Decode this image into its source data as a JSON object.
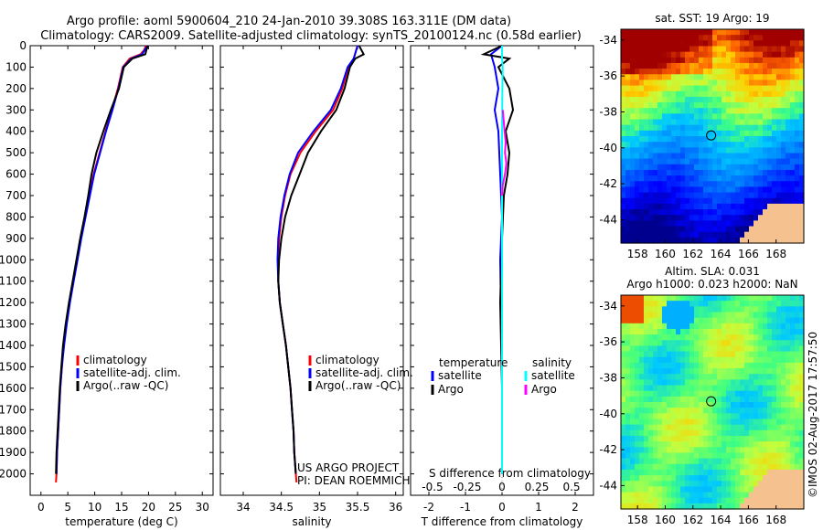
{
  "header": {
    "title_line1": "Argo profile: aoml 5900604_210 24-Jan-2010 39.308S 163.311E (DM data)",
    "title_line2": "Climatology: CARS2009. Satellite-adjusted climatology: synTS_20100124.nc (0.58d earlier)"
  },
  "colors": {
    "climatology": "#ff0000",
    "satellite": "#0000ff",
    "argo": "#000000",
    "satellite_salinity": "#00ffff",
    "argo_salinity": "#ff00ff",
    "land": "#f5c28f"
  },
  "chart_data": [
    {
      "type": "line",
      "id": "temperature",
      "xlabel": "temperature (deg C)",
      "xlim": [
        -2,
        32
      ],
      "xticks": [
        0,
        5,
        10,
        15,
        20,
        25,
        30
      ],
      "ylim": [
        2100,
        0
      ],
      "yticks": [
        0,
        100,
        200,
        300,
        400,
        500,
        600,
        700,
        800,
        900,
        1000,
        1100,
        1200,
        1300,
        1400,
        1500,
        1600,
        1700,
        1800,
        1900,
        2000
      ],
      "legend": [
        "climatology",
        "satellite-adj. clim.",
        "Argo(..raw -QC)"
      ],
      "series": [
        {
          "name": "climatology",
          "color": "#ff0000",
          "points": [
            [
              19.5,
              0
            ],
            [
              19.2,
              20
            ],
            [
              18.5,
              40
            ],
            [
              16.5,
              60
            ],
            [
              15.2,
              100
            ],
            [
              14.3,
              200
            ],
            [
              13.2,
              300
            ],
            [
              12.0,
              400
            ],
            [
              10.9,
              500
            ],
            [
              9.8,
              600
            ],
            [
              9.0,
              700
            ],
            [
              8.2,
              800
            ],
            [
              7.4,
              900
            ],
            [
              6.7,
              1000
            ],
            [
              6.0,
              1100
            ],
            [
              5.3,
              1200
            ],
            [
              4.7,
              1300
            ],
            [
              4.2,
              1400
            ],
            [
              3.9,
              1500
            ],
            [
              3.6,
              1600
            ],
            [
              3.4,
              1700
            ],
            [
              3.2,
              1800
            ],
            [
              3.0,
              1900
            ],
            [
              2.9,
              2000
            ],
            [
              2.8,
              2040
            ]
          ]
        },
        {
          "name": "satellite-adj. clim.",
          "color": "#0000ff",
          "points": [
            [
              19.8,
              0
            ],
            [
              19.3,
              20
            ],
            [
              18.8,
              40
            ],
            [
              16.8,
              60
            ],
            [
              15.3,
              100
            ],
            [
              14.4,
              200
            ],
            [
              13.3,
              300
            ],
            [
              12.1,
              400
            ],
            [
              11.0,
              500
            ],
            [
              9.9,
              600
            ],
            [
              9.1,
              700
            ],
            [
              8.3,
              800
            ],
            [
              7.5,
              900
            ],
            [
              6.8,
              1000
            ],
            [
              6.1,
              1100
            ],
            [
              5.4,
              1200
            ],
            [
              4.8,
              1300
            ],
            [
              4.3,
              1400
            ],
            [
              3.9,
              1500
            ],
            [
              3.6,
              1600
            ],
            [
              3.4,
              1700
            ],
            [
              3.2,
              1800
            ],
            [
              3.0,
              1900
            ],
            [
              2.9,
              2000
            ]
          ]
        },
        {
          "name": "Argo(..raw -QC)",
          "color": "#000000",
          "points": [
            [
              19.9,
              0
            ],
            [
              19.6,
              20
            ],
            [
              19.4,
              40
            ],
            [
              17.0,
              60
            ],
            [
              15.4,
              100
            ],
            [
              14.5,
              200
            ],
            [
              13.0,
              300
            ],
            [
              11.6,
              400
            ],
            [
              10.3,
              500
            ],
            [
              9.4,
              600
            ],
            [
              8.8,
              700
            ],
            [
              8.1,
              800
            ],
            [
              7.3,
              900
            ],
            [
              6.6,
              1000
            ],
            [
              5.9,
              1100
            ],
            [
              5.2,
              1200
            ],
            [
              4.6,
              1300
            ],
            [
              4.1,
              1400
            ],
            [
              3.8,
              1500
            ],
            [
              3.5,
              1600
            ],
            [
              3.3,
              1700
            ],
            [
              3.1,
              1800
            ],
            [
              2.9,
              1900
            ],
            [
              2.8,
              2000
            ]
          ]
        }
      ]
    },
    {
      "type": "line",
      "id": "salinity",
      "xlabel": "salinity",
      "xlim": [
        33.7,
        36.1
      ],
      "xticks": [
        34,
        34.5,
        35,
        35.5,
        36
      ],
      "ylim": [
        2100,
        0
      ],
      "legend": [
        "climatology",
        "satellite-adj. clim.",
        "Argo(..raw -QC)"
      ],
      "series": [
        {
          "name": "climatology",
          "color": "#ff0000",
          "points": [
            [
              35.5,
              0
            ],
            [
              35.45,
              60
            ],
            [
              35.38,
              100
            ],
            [
              35.3,
              200
            ],
            [
              35.18,
              300
            ],
            [
              34.95,
              400
            ],
            [
              34.75,
              500
            ],
            [
              34.62,
              600
            ],
            [
              34.55,
              700
            ],
            [
              34.5,
              800
            ],
            [
              34.47,
              900
            ],
            [
              34.46,
              1000
            ],
            [
              34.46,
              1100
            ],
            [
              34.48,
              1200
            ],
            [
              34.52,
              1300
            ],
            [
              34.56,
              1400
            ],
            [
              34.59,
              1500
            ],
            [
              34.62,
              1600
            ],
            [
              34.64,
              1700
            ],
            [
              34.66,
              1800
            ],
            [
              34.67,
              1900
            ],
            [
              34.69,
              2000
            ],
            [
              34.7,
              2040
            ]
          ]
        },
        {
          "name": "satellite-adj. clim.",
          "color": "#0000ff",
          "points": [
            [
              35.5,
              0
            ],
            [
              35.45,
              60
            ],
            [
              35.37,
              100
            ],
            [
              35.28,
              200
            ],
            [
              35.15,
              300
            ],
            [
              34.92,
              400
            ],
            [
              34.72,
              500
            ],
            [
              34.61,
              600
            ],
            [
              34.54,
              700
            ],
            [
              34.49,
              800
            ],
            [
              34.46,
              900
            ],
            [
              34.45,
              1000
            ],
            [
              34.46,
              1100
            ],
            [
              34.48,
              1200
            ],
            [
              34.52,
              1300
            ],
            [
              34.56,
              1400
            ],
            [
              34.59,
              1500
            ],
            [
              34.62,
              1600
            ],
            [
              34.64,
              1700
            ],
            [
              34.66,
              1800
            ],
            [
              34.67,
              1900
            ],
            [
              34.69,
              2000
            ]
          ]
        },
        {
          "name": "Argo(..raw -QC)",
          "color": "#000000",
          "points": [
            [
              35.52,
              0
            ],
            [
              35.58,
              40
            ],
            [
              35.47,
              60
            ],
            [
              35.4,
              100
            ],
            [
              35.33,
              200
            ],
            [
              35.22,
              300
            ],
            [
              35.02,
              400
            ],
            [
              34.85,
              500
            ],
            [
              34.74,
              600
            ],
            [
              34.63,
              700
            ],
            [
              34.55,
              800
            ],
            [
              34.5,
              900
            ],
            [
              34.47,
              1000
            ],
            [
              34.46,
              1100
            ],
            [
              34.48,
              1200
            ],
            [
              34.52,
              1300
            ],
            [
              34.56,
              1400
            ],
            [
              34.59,
              1500
            ],
            [
              34.62,
              1600
            ],
            [
              34.64,
              1700
            ],
            [
              34.66,
              1800
            ],
            [
              34.67,
              1900
            ],
            [
              34.69,
              2000
            ]
          ]
        }
      ],
      "annotation": [
        "US ARGO PROJECT",
        "PI: DEAN ROEMMICH"
      ]
    },
    {
      "type": "line",
      "id": "difference",
      "xlabel": "T difference from climatology",
      "top_xlabel": "S difference from climatology",
      "xlim": [
        -2.5,
        2.5
      ],
      "xticks": [
        -2,
        -1,
        0,
        1,
        2
      ],
      "top_xticks": [
        "-0.5",
        "-0.25",
        "0",
        "0.25",
        "0.5"
      ],
      "ylim": [
        2100,
        0
      ],
      "legend_headers": [
        "temperature",
        "salinity"
      ],
      "legend_left": [
        "satellite",
        "Argo"
      ],
      "legend_right": [
        "satellite",
        "Argo"
      ],
      "series": [
        {
          "name": "temperature satellite",
          "color": "#0000ff",
          "points": [
            [
              0,
              0
            ],
            [
              -0.3,
              40
            ],
            [
              -0.2,
              100
            ],
            [
              -0.1,
              200
            ],
            [
              -0.2,
              300
            ],
            [
              -0.1,
              400
            ],
            [
              -0.05,
              600
            ],
            [
              0,
              800
            ],
            [
              -0.05,
              1000
            ],
            [
              0,
              1500
            ],
            [
              0,
              2000
            ]
          ]
        },
        {
          "name": "temperature Argo",
          "color": "#000000",
          "points": [
            [
              0,
              0
            ],
            [
              -0.5,
              40
            ],
            [
              0.2,
              60
            ],
            [
              -0.1,
              100
            ],
            [
              0.2,
              200
            ],
            [
              0.3,
              300
            ],
            [
              0.1,
              400
            ],
            [
              0.2,
              500
            ],
            [
              0.15,
              600
            ],
            [
              0.05,
              700
            ],
            [
              0,
              900
            ],
            [
              -0.05,
              1200
            ],
            [
              0,
              1600
            ],
            [
              0,
              2000
            ]
          ]
        },
        {
          "name": "salinity satellite",
          "color": "#00ffff",
          "points": [
            [
              0,
              0
            ],
            [
              0,
              60
            ],
            [
              0.02,
              100
            ],
            [
              0.01,
              200
            ],
            [
              0,
              400
            ],
            [
              0,
              800
            ],
            [
              0,
              1500
            ],
            [
              0,
              2000
            ]
          ]
        },
        {
          "name": "salinity Argo",
          "color": "#ff00ff",
          "points": [
            [
              0.02,
              300
            ],
            [
              0.07,
              400
            ],
            [
              0.1,
              450
            ],
            [
              0.08,
              500
            ],
            [
              0.12,
              550
            ],
            [
              0.08,
              600
            ],
            [
              0.02,
              650
            ],
            [
              0,
              700
            ]
          ]
        }
      ]
    },
    {
      "type": "heatmap",
      "id": "sst_map",
      "title": "sat. SST: 19 Argo: 19",
      "xticks": [
        158,
        160,
        162,
        164,
        166,
        168
      ],
      "yticks": [
        -34,
        -36,
        -38,
        -40,
        -42,
        -44
      ],
      "float_position": [
        163.311,
        -39.308
      ]
    },
    {
      "type": "heatmap",
      "id": "sla_map",
      "title_line1": "Altim. SLA: 0.031",
      "title_line2": "Argo h1000: 0.023 h2000: NaN",
      "xticks": [
        158,
        160,
        162,
        164,
        166,
        168
      ],
      "yticks": [
        -34,
        -36,
        -38,
        -40,
        -42,
        -44
      ],
      "float_position": [
        163.311,
        -39.308
      ]
    }
  ],
  "footer": {
    "stamp": "©IMOS 02-Aug-2017 17:57:50"
  }
}
